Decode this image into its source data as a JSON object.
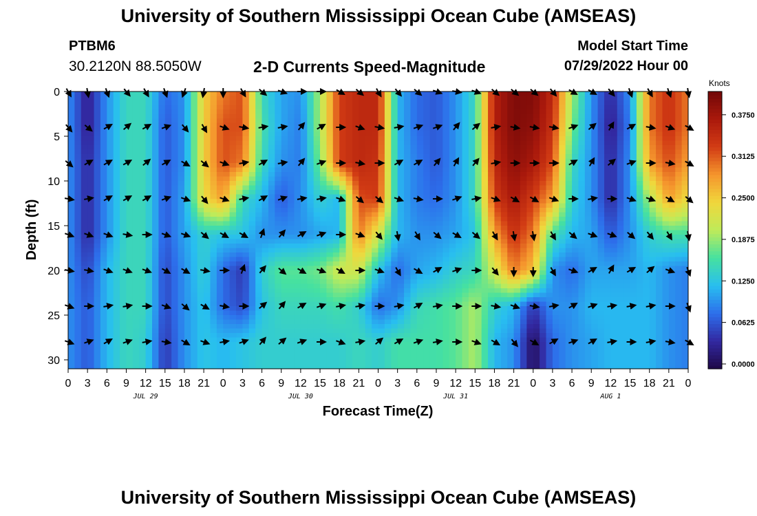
{
  "header": {
    "title": "University of Southern Mississippi Ocean Cube (AMSEAS)",
    "station_id": "PTBM6",
    "station_coords": "30.2120N  88.5050W",
    "chart_title": "2-D Currents Speed-Magnitude",
    "model_start_label": "Model Start Time",
    "model_start_value": "07/29/2022 Hour 00"
  },
  "footer": {
    "title": "University of Southern Mississippi Ocean Cube (AMSEAS)"
  },
  "chart_data": {
    "type": "heatmap",
    "title": "2-D Currents Speed-Magnitude",
    "xlabel": "Forecast Time(Z)",
    "ylabel": "Depth (ft)",
    "x_tick_labels": [
      "0",
      "3",
      "6",
      "9",
      "12",
      "15",
      "18",
      "21",
      "0",
      "3",
      "6",
      "9",
      "12",
      "15",
      "18",
      "21",
      "0",
      "3",
      "6",
      "9",
      "12",
      "15",
      "18",
      "21",
      "0",
      "3",
      "6",
      "9",
      "12",
      "15",
      "18",
      "21",
      "0"
    ],
    "date_labels": [
      {
        "text": "JUL 29",
        "hour": 12
      },
      {
        "text": "JUL 30",
        "hour": 36
      },
      {
        "text": "JUL 31",
        "hour": 60
      },
      {
        "text": "AUG 1",
        "hour": 84
      }
    ],
    "xlim_hours": [
      0,
      96
    ],
    "y_ticks": [
      0,
      5,
      10,
      15,
      20,
      25,
      30
    ],
    "ylim_ft": [
      0,
      31
    ],
    "colorbar": {
      "unit": "Knots",
      "ticks": [
        "0.0000",
        "0.0625",
        "0.1250",
        "0.1875",
        "0.2500",
        "0.3125",
        "0.3750"
      ],
      "range": [
        0,
        0.41
      ]
    },
    "grid_hours": [
      0,
      3,
      6,
      9,
      12,
      15,
      18,
      21,
      24,
      27,
      30,
      33,
      36,
      39,
      42,
      45,
      48,
      51,
      54,
      57,
      60,
      63,
      66,
      69,
      72,
      75,
      78,
      81,
      84,
      87,
      90,
      93,
      96
    ],
    "grid_depths_ft": [
      0,
      4,
      8,
      12,
      16,
      20,
      24,
      28
    ],
    "speed_knots": [
      [
        0.1,
        0.03,
        0.1,
        0.15,
        0.15,
        0.08,
        0.1,
        0.25,
        0.3,
        0.32,
        0.15,
        0.11,
        0.1,
        0.2,
        0.33,
        0.35,
        0.35,
        0.12,
        0.08,
        0.07,
        0.1,
        0.15,
        0.36,
        0.4,
        0.4,
        0.35,
        0.2,
        0.1,
        0.04,
        0.1,
        0.3,
        0.34,
        0.3
      ],
      [
        0.1,
        0.03,
        0.1,
        0.15,
        0.15,
        0.07,
        0.1,
        0.25,
        0.32,
        0.32,
        0.16,
        0.11,
        0.09,
        0.2,
        0.33,
        0.35,
        0.35,
        0.12,
        0.08,
        0.07,
        0.1,
        0.15,
        0.36,
        0.4,
        0.39,
        0.34,
        0.18,
        0.1,
        0.03,
        0.09,
        0.3,
        0.34,
        0.3
      ],
      [
        0.1,
        0.04,
        0.1,
        0.15,
        0.15,
        0.07,
        0.1,
        0.25,
        0.32,
        0.3,
        0.15,
        0.1,
        0.09,
        0.18,
        0.33,
        0.35,
        0.34,
        0.12,
        0.09,
        0.07,
        0.1,
        0.15,
        0.35,
        0.39,
        0.37,
        0.32,
        0.15,
        0.1,
        0.04,
        0.1,
        0.28,
        0.32,
        0.28
      ],
      [
        0.1,
        0.04,
        0.1,
        0.15,
        0.15,
        0.07,
        0.11,
        0.24,
        0.28,
        0.15,
        0.12,
        0.07,
        0.1,
        0.14,
        0.12,
        0.32,
        0.33,
        0.12,
        0.09,
        0.08,
        0.1,
        0.15,
        0.33,
        0.37,
        0.33,
        0.28,
        0.14,
        0.1,
        0.04,
        0.1,
        0.2,
        0.28,
        0.24
      ],
      [
        0.1,
        0.04,
        0.1,
        0.15,
        0.15,
        0.07,
        0.11,
        0.14,
        0.13,
        0.13,
        0.1,
        0.1,
        0.1,
        0.11,
        0.12,
        0.3,
        0.22,
        0.12,
        0.1,
        0.1,
        0.11,
        0.13,
        0.28,
        0.34,
        0.3,
        0.16,
        0.12,
        0.11,
        0.07,
        0.1,
        0.14,
        0.16,
        0.16
      ],
      [
        0.1,
        0.06,
        0.12,
        0.15,
        0.15,
        0.06,
        0.1,
        0.14,
        0.08,
        0.05,
        0.14,
        0.17,
        0.17,
        0.18,
        0.22,
        0.22,
        0.13,
        0.08,
        0.11,
        0.12,
        0.14,
        0.15,
        0.22,
        0.3,
        0.26,
        0.1,
        0.08,
        0.11,
        0.11,
        0.11,
        0.12,
        0.1,
        0.09
      ],
      [
        0.1,
        0.07,
        0.12,
        0.15,
        0.15,
        0.06,
        0.1,
        0.13,
        0.08,
        0.06,
        0.13,
        0.15,
        0.15,
        0.15,
        0.16,
        0.14,
        0.08,
        0.1,
        0.15,
        0.16,
        0.17,
        0.2,
        0.14,
        0.12,
        0.05,
        0.1,
        0.1,
        0.12,
        0.12,
        0.12,
        0.12,
        0.1,
        0.09
      ],
      [
        0.1,
        0.07,
        0.12,
        0.15,
        0.14,
        0.05,
        0.1,
        0.13,
        0.12,
        0.13,
        0.14,
        0.14,
        0.14,
        0.14,
        0.14,
        0.15,
        0.14,
        0.16,
        0.16,
        0.16,
        0.17,
        0.2,
        0.12,
        0.1,
        0.01,
        0.08,
        0.1,
        0.11,
        0.12,
        0.12,
        0.12,
        0.1,
        0.09
      ]
    ],
    "direction_deg": [
      [
        150,
        170,
        160,
        140,
        150,
        160,
        200,
        190,
        180,
        150,
        130,
        110,
        90,
        90,
        120,
        130,
        150,
        140,
        130,
        110,
        100,
        110,
        130,
        130,
        130,
        140,
        120,
        120,
        140,
        160,
        150,
        160,
        170
      ],
      [
        140,
        130,
        60,
        50,
        60,
        70,
        140,
        150,
        110,
        100,
        80,
        80,
        40,
        60,
        90,
        110,
        100,
        80,
        70,
        70,
        40,
        50,
        80,
        100,
        100,
        100,
        70,
        50,
        30,
        60,
        100,
        110,
        120
      ],
      [
        130,
        60,
        60,
        60,
        50,
        60,
        120,
        130,
        110,
        80,
        60,
        80,
        40,
        70,
        90,
        100,
        90,
        60,
        60,
        40,
        30,
        40,
        80,
        90,
        90,
        90,
        60,
        30,
        50,
        70,
        90,
        100,
        120
      ],
      [
        100,
        80,
        60,
        60,
        60,
        70,
        110,
        140,
        110,
        80,
        60,
        70,
        80,
        80,
        110,
        130,
        130,
        110,
        100,
        90,
        70,
        80,
        110,
        120,
        120,
        110,
        90,
        80,
        90,
        110,
        110,
        120,
        130
      ],
      [
        110,
        110,
        110,
        100,
        90,
        110,
        110,
        130,
        120,
        120,
        20,
        40,
        60,
        70,
        90,
        110,
        140,
        170,
        150,
        130,
        120,
        130,
        150,
        170,
        170,
        150,
        130,
        110,
        110,
        130,
        140,
        150,
        170
      ],
      [
        100,
        100,
        110,
        110,
        110,
        120,
        120,
        100,
        90,
        20,
        40,
        130,
        120,
        110,
        120,
        90,
        110,
        150,
        120,
        60,
        70,
        90,
        140,
        180,
        180,
        150,
        110,
        60,
        30,
        60,
        50,
        110,
        160
      ],
      [
        110,
        90,
        80,
        80,
        90,
        110,
        130,
        120,
        100,
        90,
        50,
        40,
        60,
        70,
        80,
        80,
        90,
        80,
        60,
        80,
        90,
        90,
        100,
        110,
        100,
        80,
        60,
        70,
        80,
        80,
        80,
        90,
        160
      ],
      [
        110,
        70,
        60,
        70,
        80,
        100,
        120,
        110,
        80,
        70,
        40,
        50,
        70,
        90,
        110,
        80,
        50,
        60,
        70,
        80,
        90,
        110,
        120,
        140,
        120,
        60,
        70,
        60,
        80,
        90,
        80,
        100,
        120
      ]
    ]
  }
}
